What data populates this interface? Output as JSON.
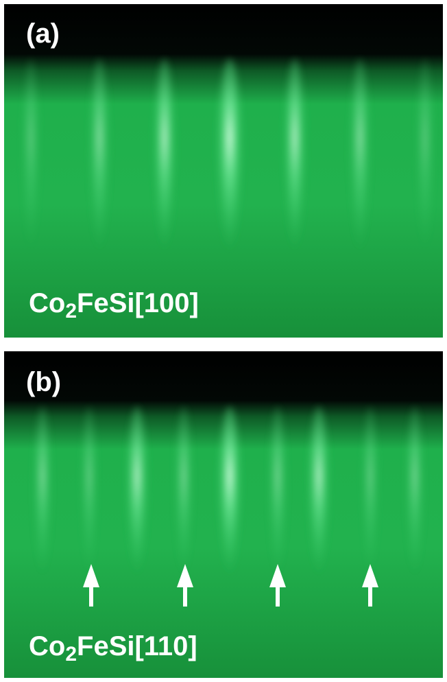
{
  "panels": [
    {
      "label": "(a)",
      "caption": {
        "prefix": "Co",
        "subscript": "2",
        "suffix": "FeSi[100]"
      }
    },
    {
      "label": "(b)",
      "caption": {
        "prefix": "Co",
        "subscript": "2",
        "suffix": "FeSi[110]"
      }
    }
  ]
}
